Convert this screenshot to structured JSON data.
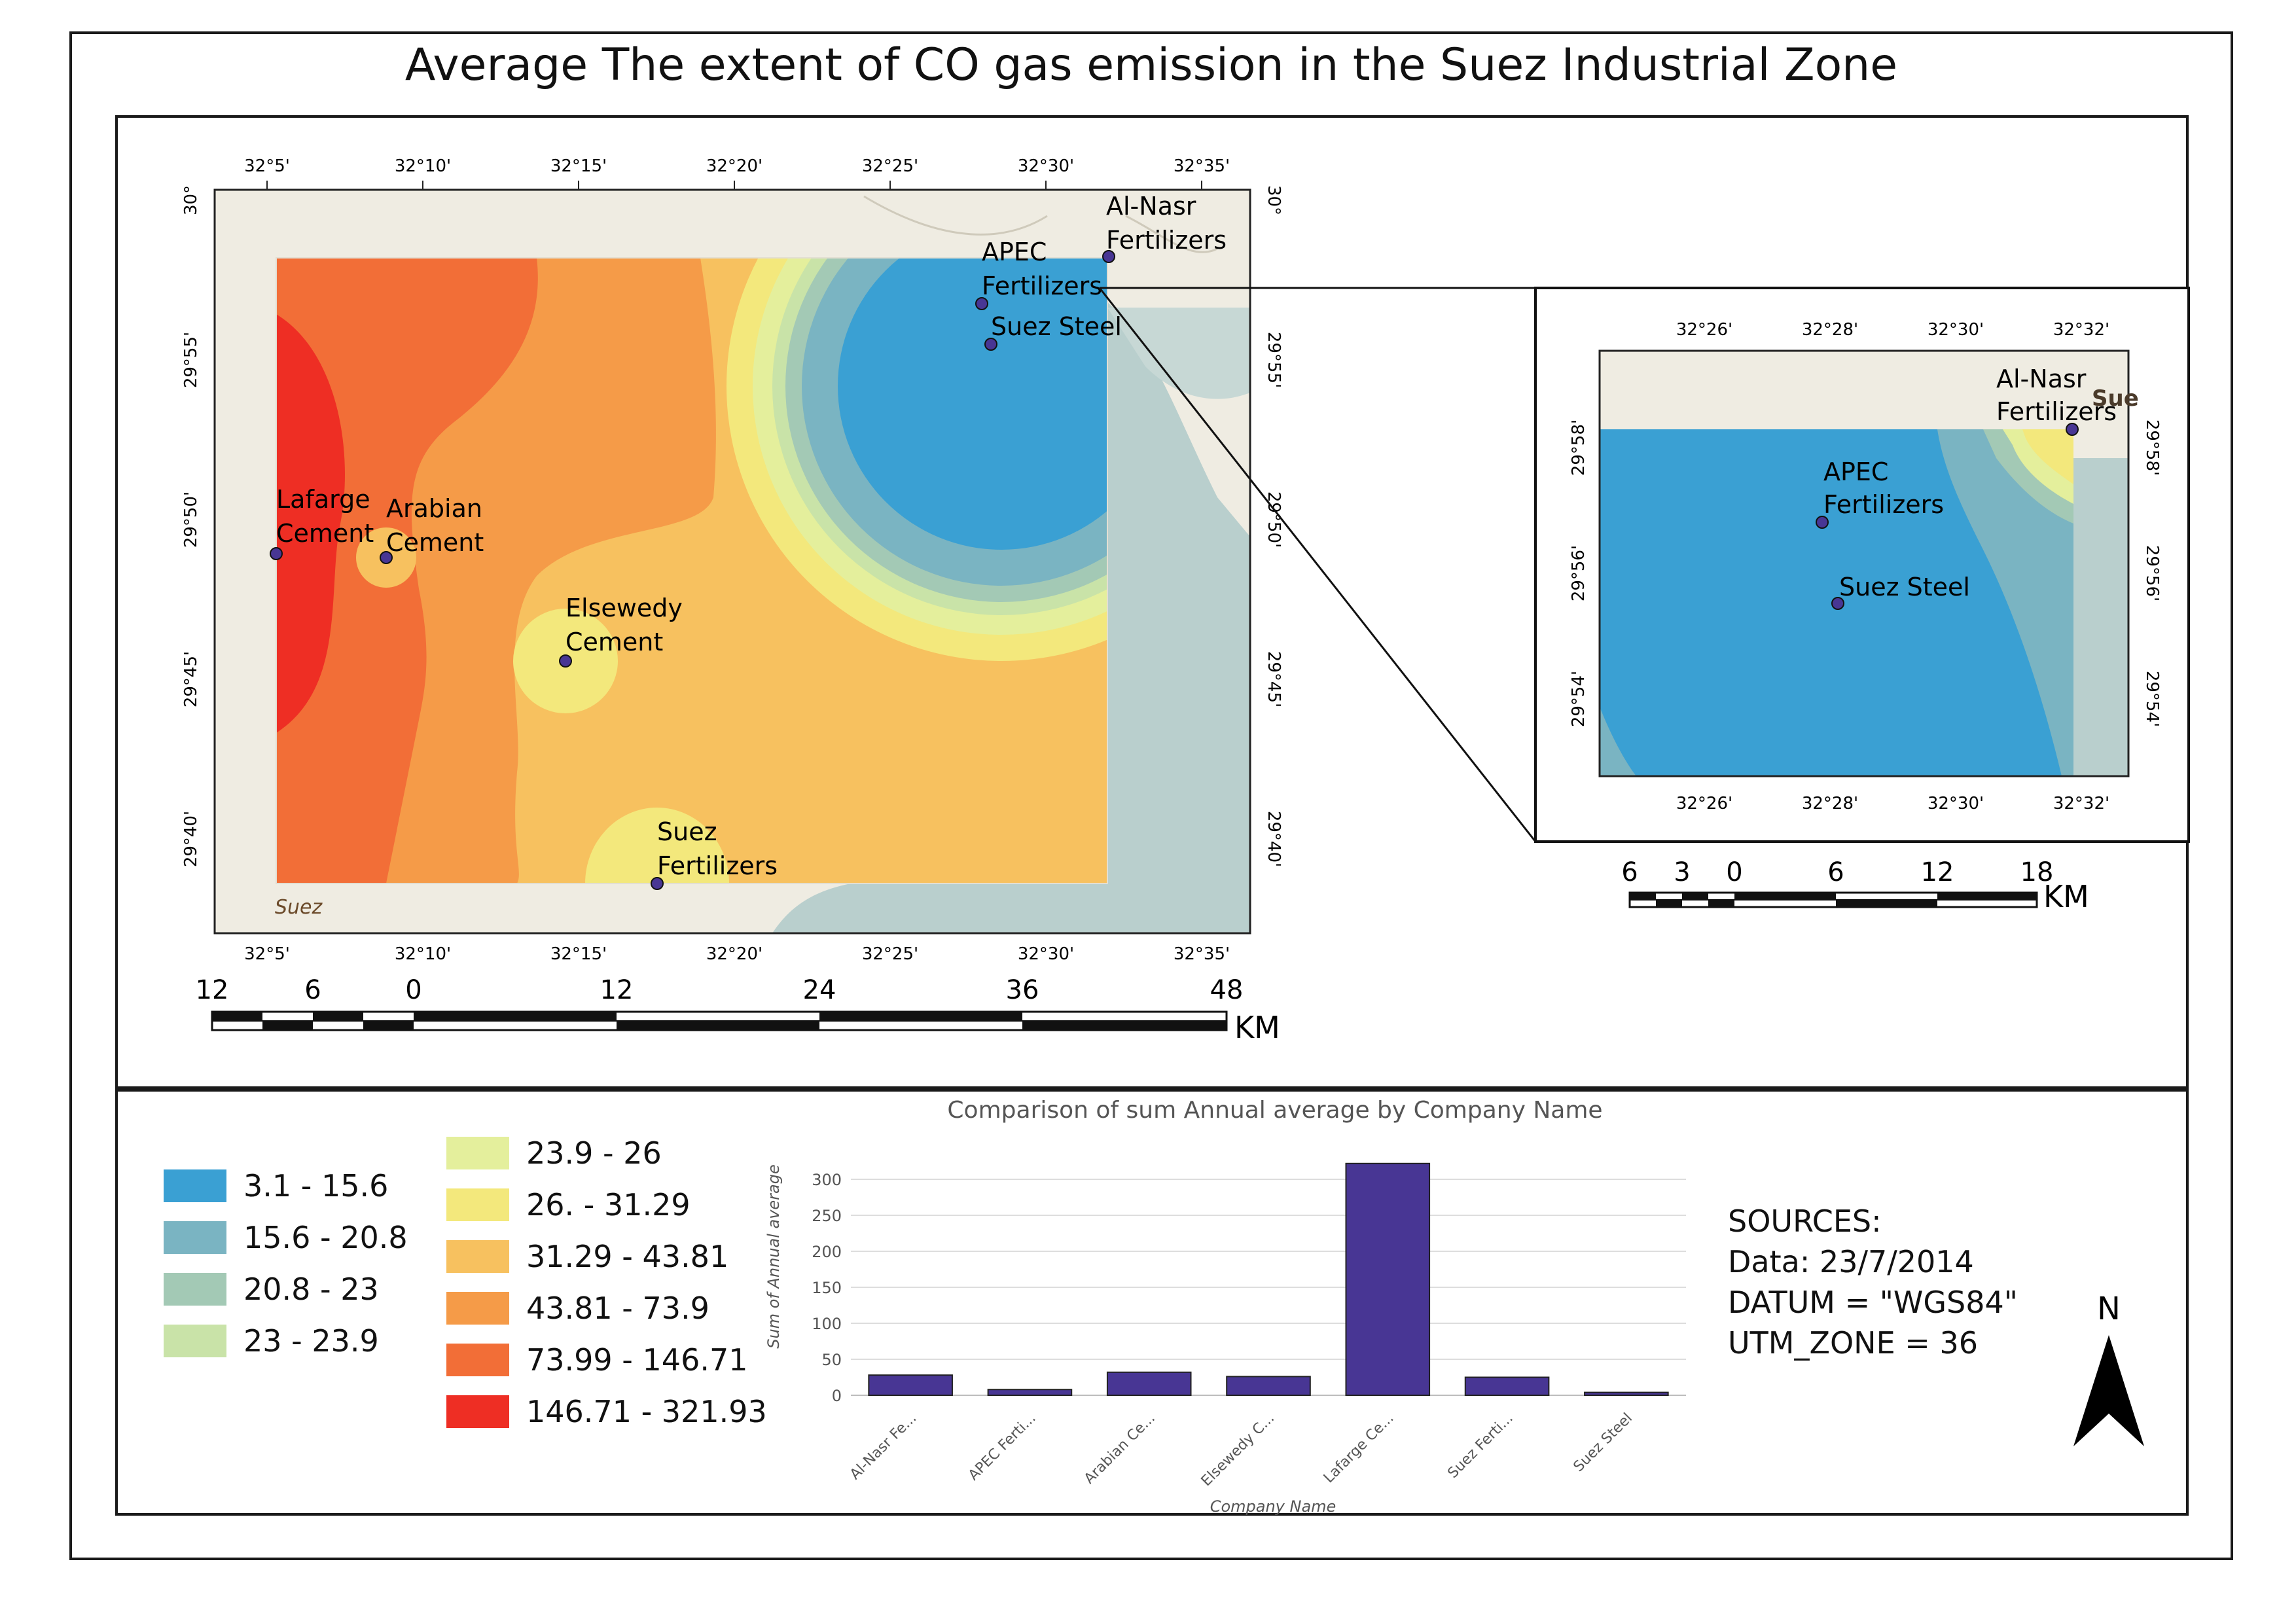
{
  "title": "Average  The extent of CO gas emission in the Suez Industrial Zone",
  "main_map": {
    "top_ticks": [
      "32°5'",
      "32°10'",
      "32°15'",
      "32°20'",
      "32°25'",
      "32°30'",
      "32°35'"
    ],
    "bottom_ticks": [
      "32°5'",
      "32°10'",
      "32°15'",
      "32°20'",
      "32°25'",
      "32°30'",
      "32°35'"
    ],
    "left_ticks": [
      "30°",
      "29°55'",
      "29°50'",
      "29°45'",
      "29°40'"
    ],
    "right_ticks": [
      "30°",
      "29°55'",
      "29°50'",
      "29°45'",
      "29°40'"
    ],
    "basemap_label": "Suez",
    "sites": [
      {
        "name": "Al-Nasr\nFertilizers",
        "line1": "Al-Nasr",
        "line2": "Fertilizers"
      },
      {
        "name": "APEC Fertilizers",
        "line1": "APEC",
        "line2": "Fertilizers"
      },
      {
        "name": "Suez Steel",
        "line1": "Suez Steel",
        "line2": ""
      },
      {
        "name": "Lafarge Cement",
        "line1": "Lafarge",
        "line2": "Cement"
      },
      {
        "name": "Arabian Cement",
        "line1": "Arabian",
        "line2": "Cement"
      },
      {
        "name": "Elsewedy Cement",
        "line1": "Elsewedy",
        "line2": "Cement"
      },
      {
        "name": "Suez Fertilizers",
        "line1": "Suez",
        "line2": "Fertilizers"
      }
    ],
    "scale_labels": [
      "12",
      "6",
      "0",
      "12",
      "24",
      "36",
      "48"
    ],
    "scale_unit": "KM"
  },
  "inset_map": {
    "top_ticks": [
      "32°26'",
      "32°28'",
      "32°30'",
      "32°32'"
    ],
    "bottom_ticks": [
      "32°26'",
      "32°28'",
      "32°30'",
      "32°32'"
    ],
    "left_ticks": [
      "29°58'",
      "29°56'",
      "29°54'"
    ],
    "right_ticks": [
      "29°58'",
      "29°56'",
      "29°54'"
    ],
    "sites": [
      {
        "line1": "Al-Nasr",
        "line2": "Fertilizers"
      },
      {
        "line1": "APEC",
        "line2": "Fertilizers"
      },
      {
        "line1": "Suez Steel",
        "line2": ""
      }
    ],
    "edge_label": "Sue",
    "scale_labels": [
      "6",
      "3",
      "0",
      "6",
      "12",
      "18"
    ],
    "scale_unit": "KM"
  },
  "legend": {
    "classes": [
      {
        "label": "3.1 - 15.6",
        "color": "#3aa0d3"
      },
      {
        "label": "15.6 - 20.8",
        "color": "#7ab4c2"
      },
      {
        "label": "20.8 - 23",
        "color": "#a3c9b5"
      },
      {
        "label": "23 - 23.9",
        "color": "#c9e3a8"
      },
      {
        "label": "23.9 - 26",
        "color": "#e4ef9c"
      },
      {
        "label": "26. - 31.29",
        "color": "#f3e87c"
      },
      {
        "label": "31.29 - 43.81",
        "color": "#f7c15f"
      },
      {
        "label": "43.81 - 73.9",
        "color": "#f59b48"
      },
      {
        "label": "73.99 - 146.71",
        "color": "#f26e37"
      },
      {
        "label": "146.71 - 321.93",
        "color": "#ee2e24"
      }
    ]
  },
  "chart_data": {
    "type": "bar",
    "title": "Comparison of sum Annual average by Company Name",
    "xlabel": "Company Name",
    "ylabel": "Sum of Annual average",
    "categories": [
      "Al-Nasr Fe...",
      "APEC Ferti...",
      "Arabian Ce...",
      "Elsewedy C...",
      "Lafarge Ce...",
      "Suez Ferti...",
      "Suez Steel"
    ],
    "values": [
      28,
      8,
      32,
      26,
      322,
      25,
      4
    ],
    "ylim": [
      0,
      320
    ],
    "yticks": [
      0,
      50,
      100,
      150,
      200,
      250,
      300
    ],
    "grid": true,
    "bar_color": "#483694"
  },
  "sources": {
    "heading": "SOURCES:",
    "data": "Data: 23/7/2014",
    "datum": "DATUM = \"WGS84\"",
    "utm": "UTM_ZONE = 36"
  },
  "north_label": "N"
}
